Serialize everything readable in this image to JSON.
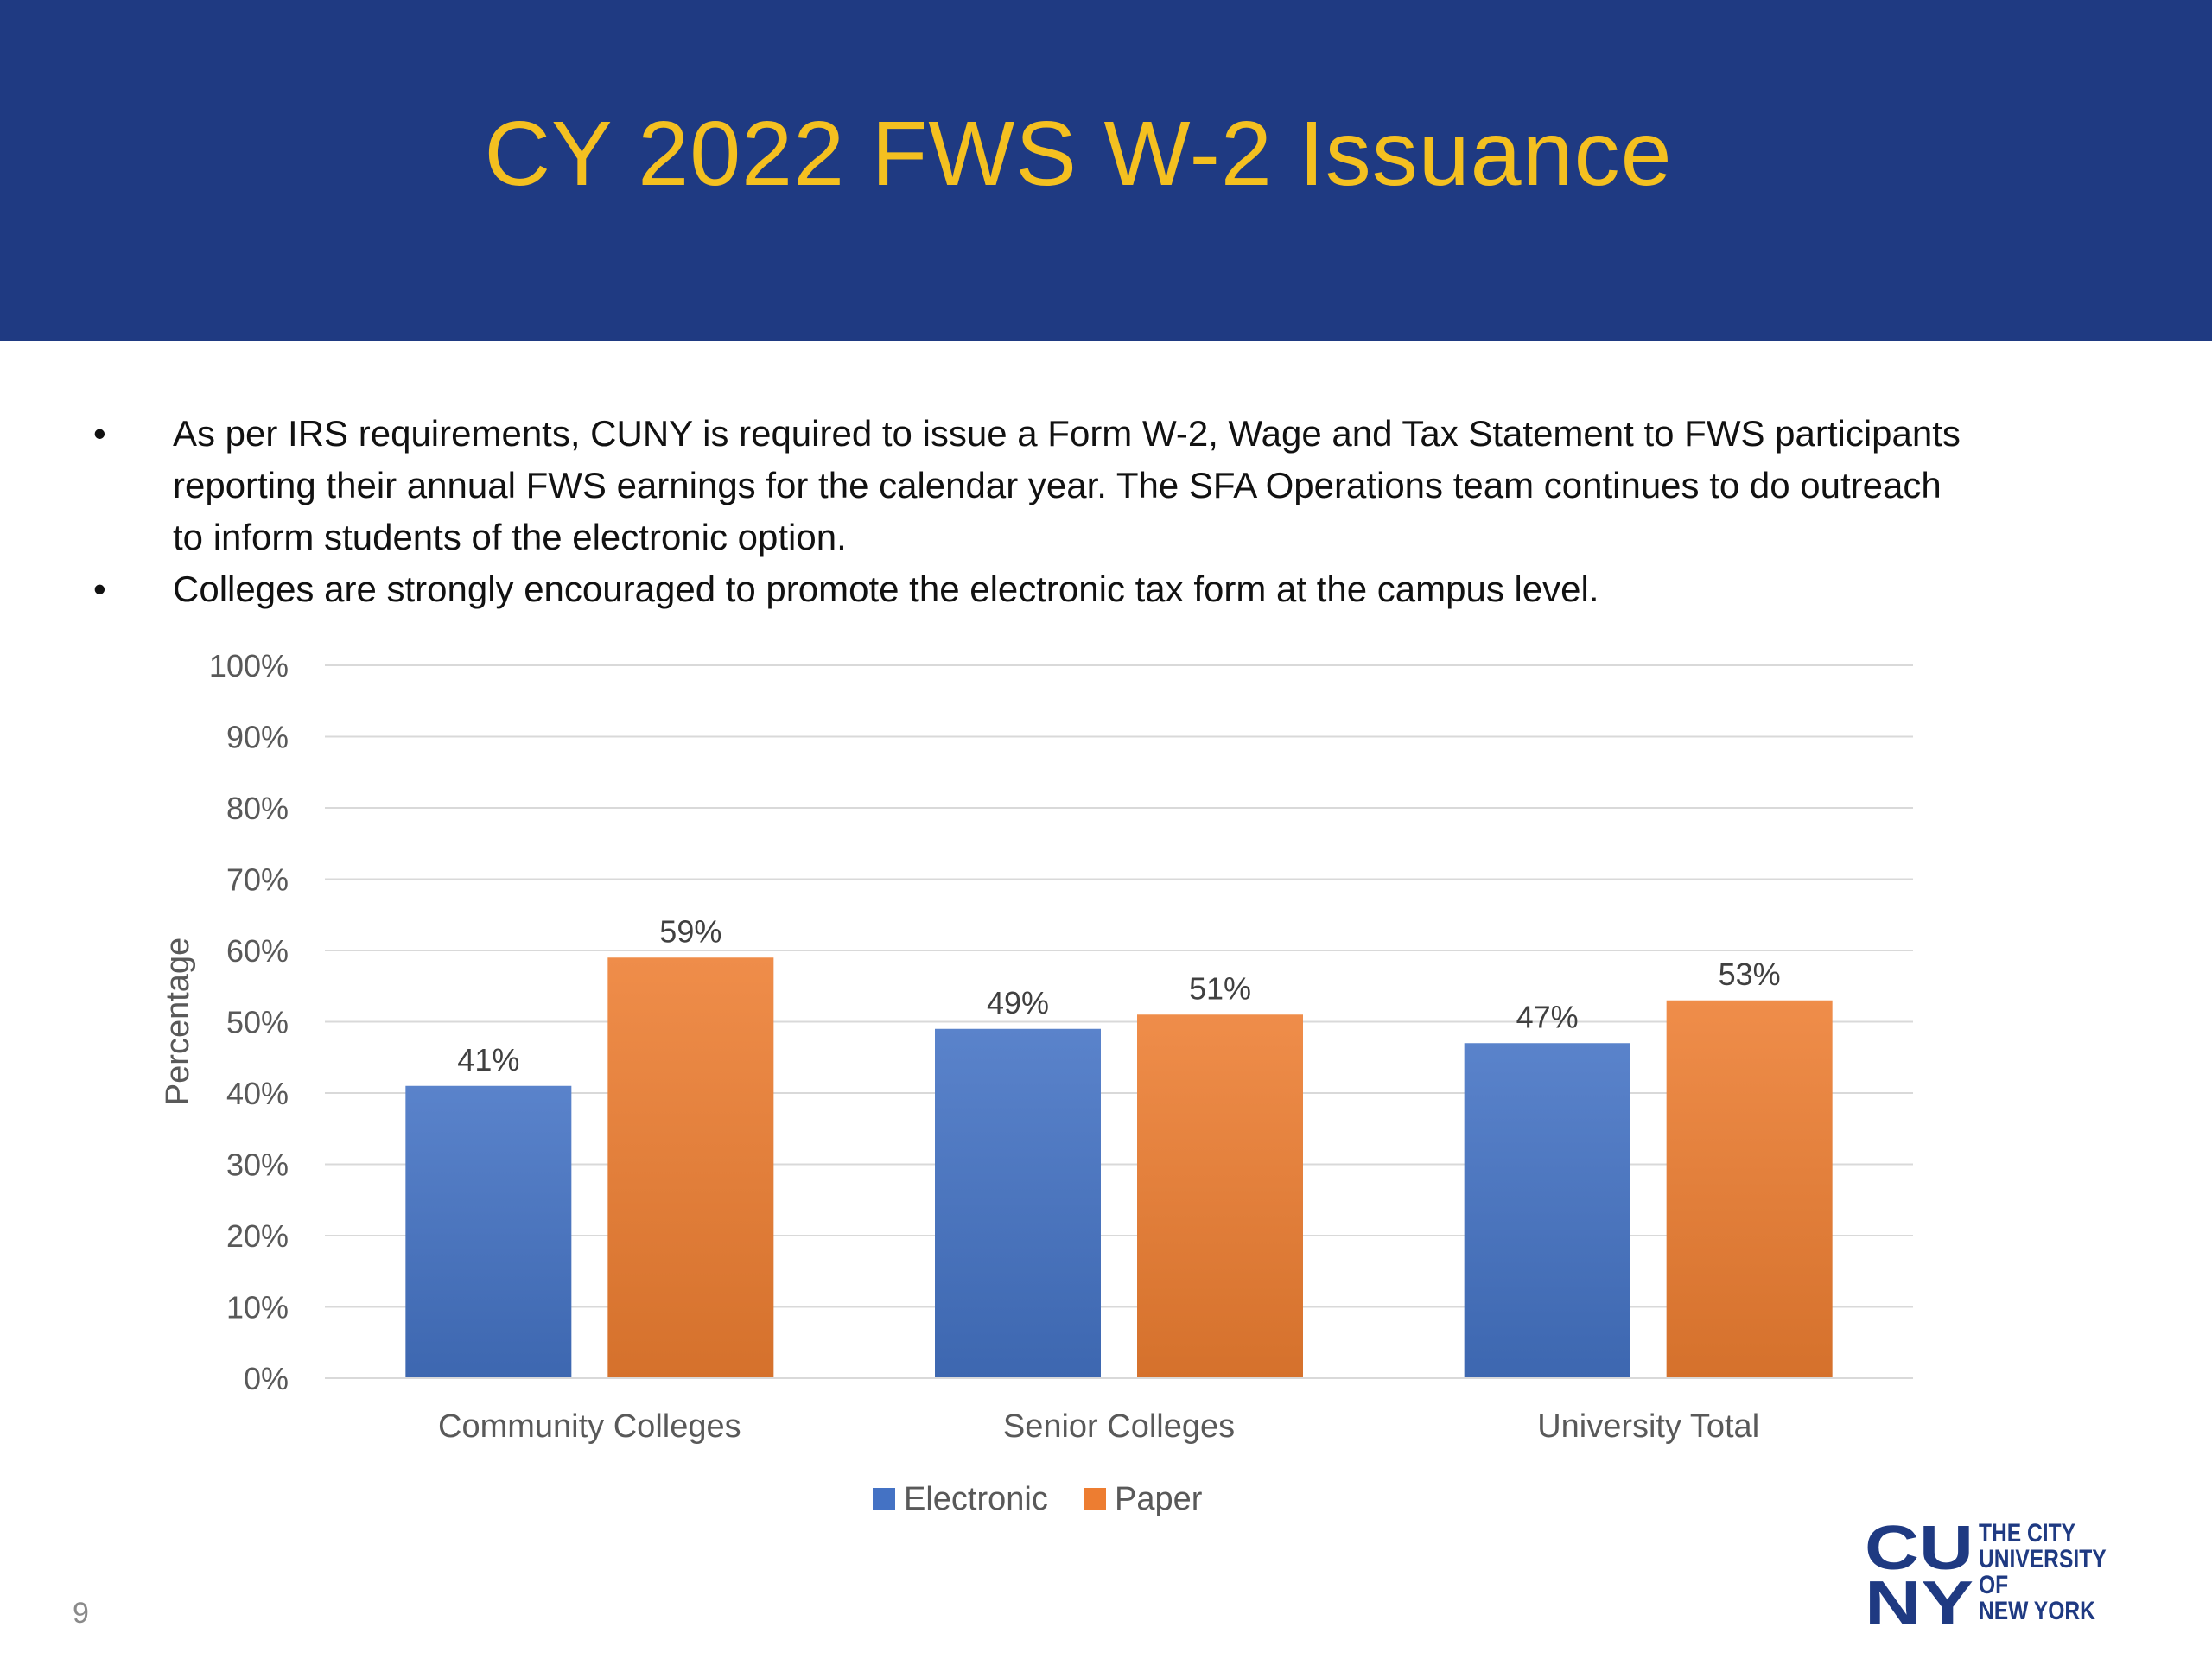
{
  "slide": {
    "title": "CY 2022 FWS W-2 Issuance",
    "bullets": [
      "As per IRS requirements, CUNY is required to issue a Form W-2, Wage and Tax Statement to FWS participants reporting their annual FWS earnings for the calendar year. The SFA Operations team continues to do outreach to inform students of the electronic option.",
      "Colleges are strongly encouraged to promote the electronic tax form at the campus level."
    ],
    "bullet_glyph": "•",
    "page_number": "9",
    "logo": {
      "mark_top": "CU",
      "mark_bottom": "NY",
      "lines": [
        "THE CITY",
        "UNIVERSITY",
        "OF",
        "NEW YORK"
      ]
    },
    "colors": {
      "header_bg": "#1f3a82",
      "title": "#f4c020"
    }
  },
  "chart_data": {
    "type": "bar",
    "categories": [
      "Community Colleges",
      "Senior Colleges",
      "University Total"
    ],
    "series": [
      {
        "name": "Electronic",
        "values": [
          41,
          49,
          47
        ],
        "labels": [
          "41%",
          "49%",
          "47%"
        ],
        "color": "#4472c4"
      },
      {
        "name": "Paper",
        "values": [
          59,
          51,
          53
        ],
        "labels": [
          "59%",
          "51%",
          "53%"
        ],
        "color": "#ed7d31"
      }
    ],
    "ylabel": "Percentage",
    "xlabel": "",
    "ylim": [
      0,
      100
    ],
    "yticks": [
      "0%",
      "10%",
      "20%",
      "30%",
      "40%",
      "50%",
      "60%",
      "70%",
      "80%",
      "90%",
      "100%"
    ],
    "grid": true,
    "legend_position": "bottom"
  }
}
